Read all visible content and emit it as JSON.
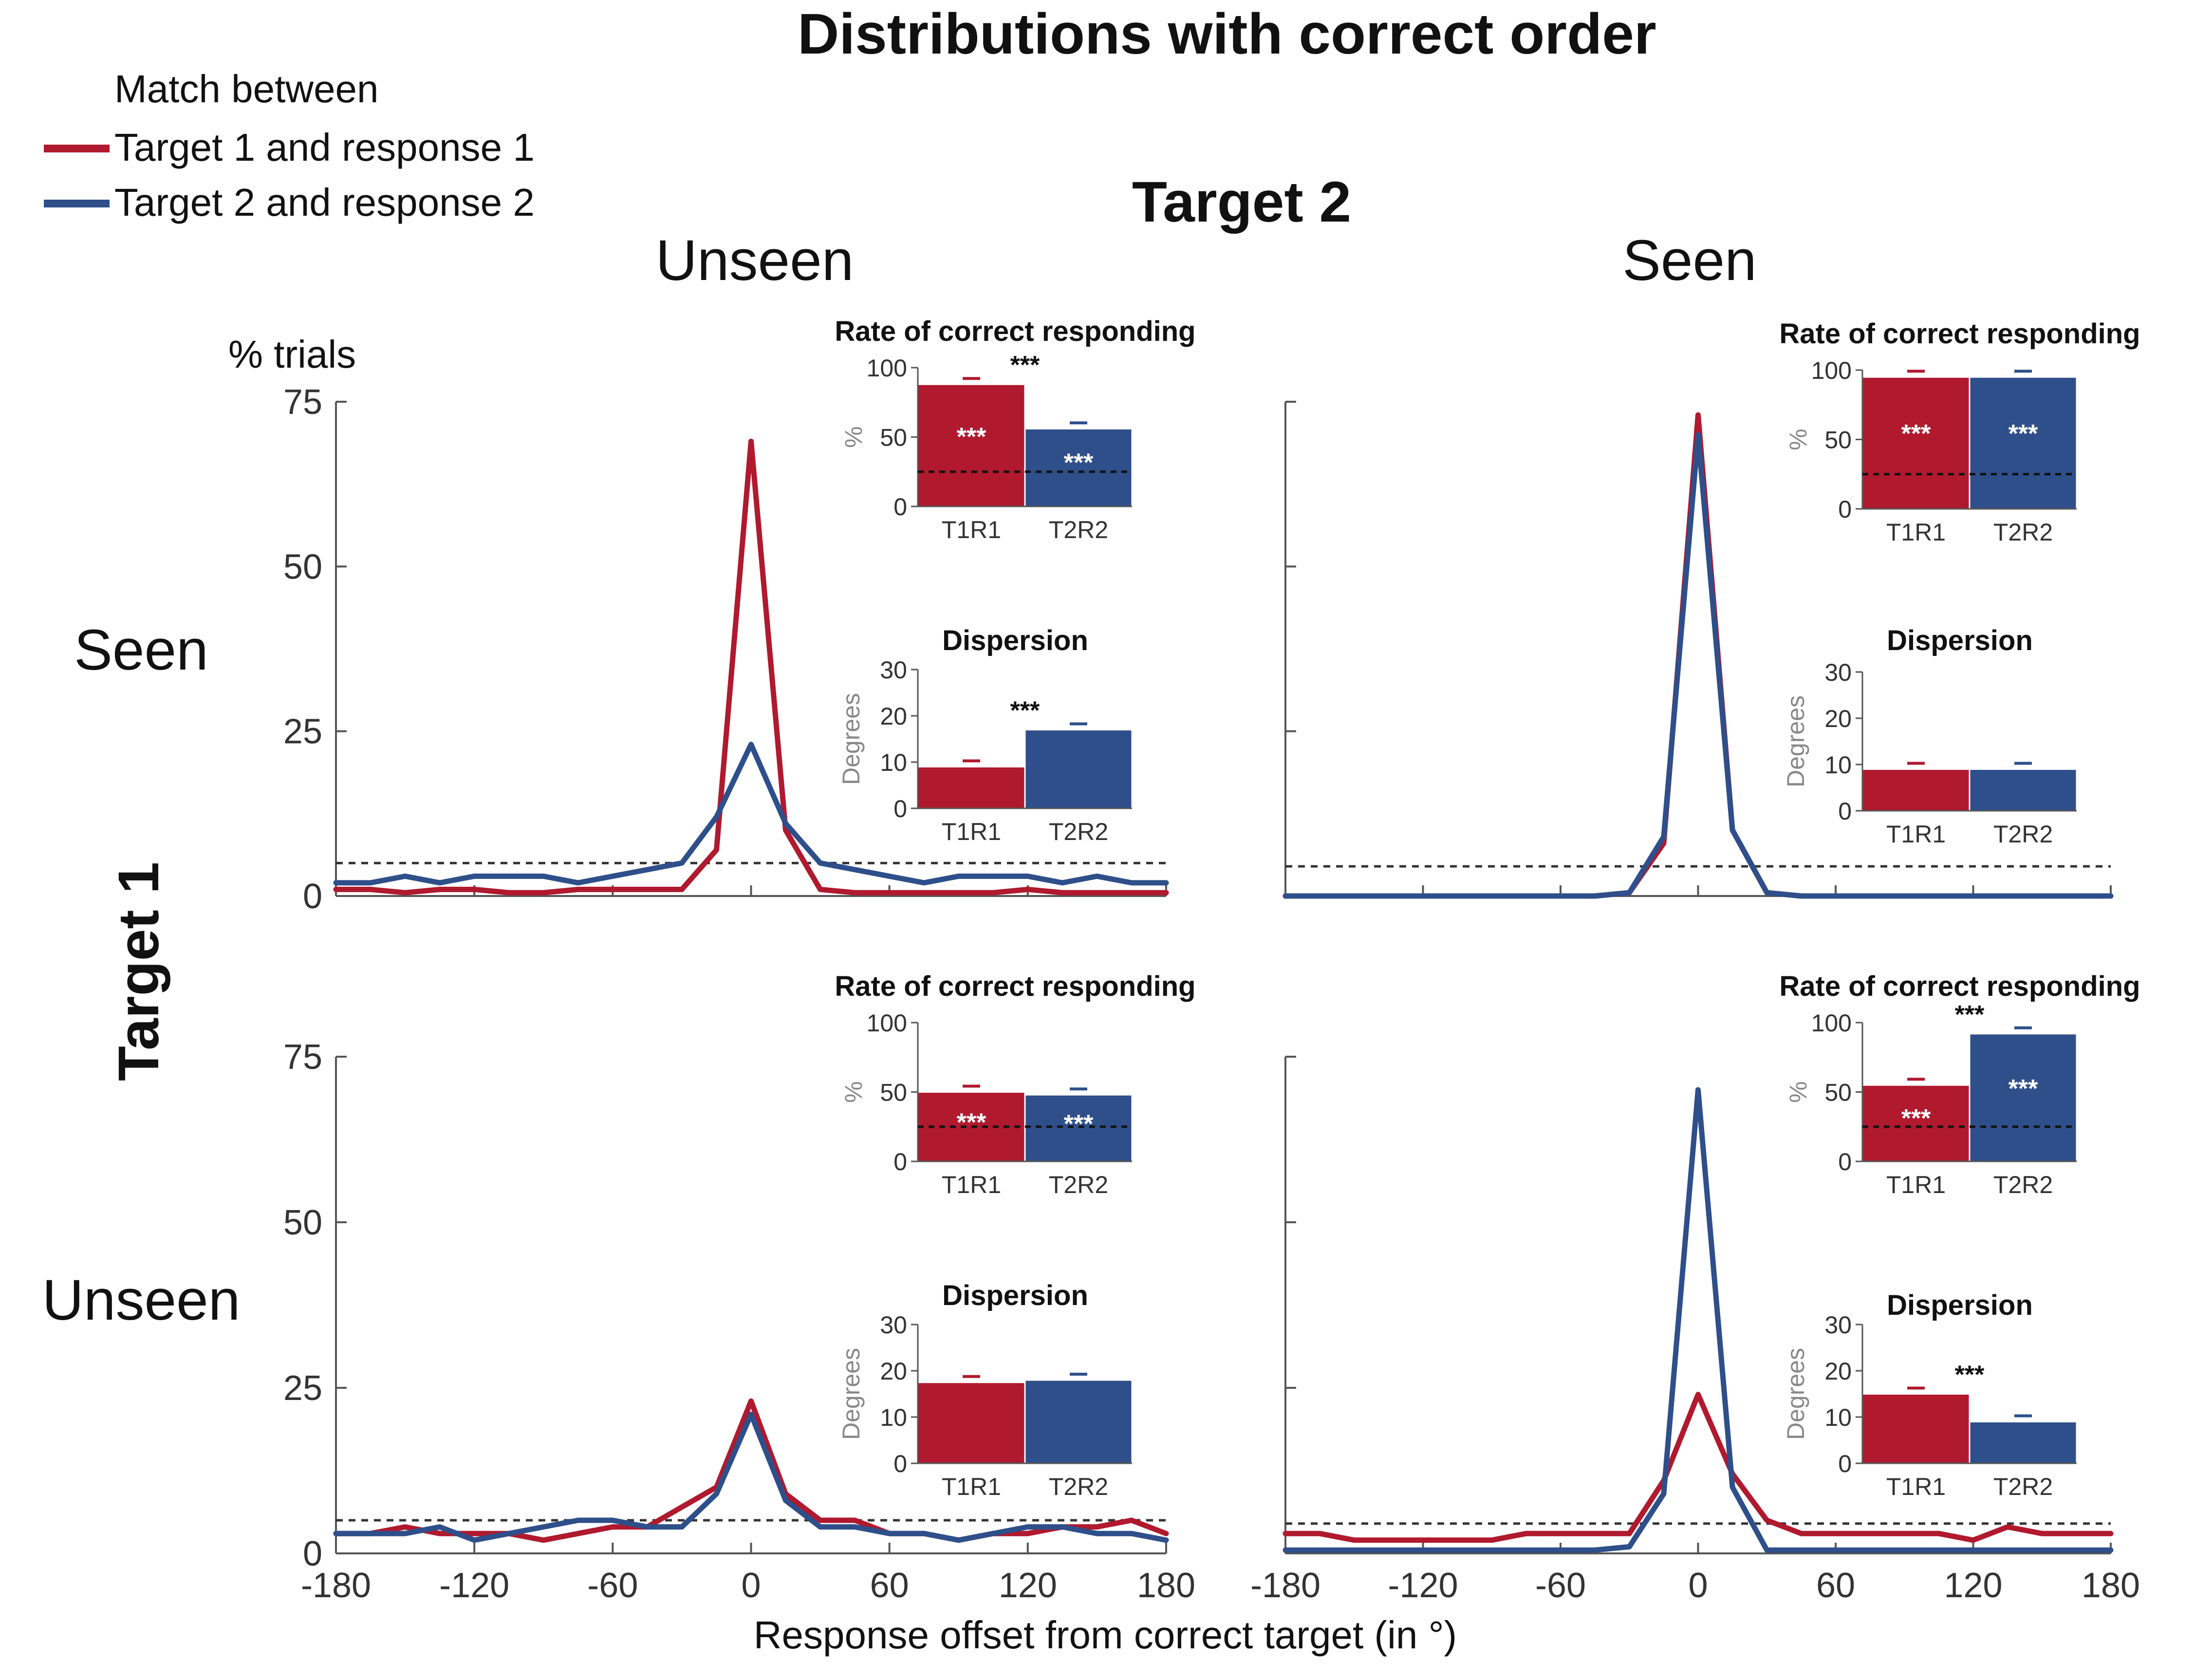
{
  "figure": {
    "title": "Distributions with correct order",
    "column_group_label": "Target 2",
    "row_group_label": "Target 1",
    "column_labels": [
      "Unseen",
      "Seen"
    ],
    "row_labels": [
      "Seen",
      "Unseen"
    ],
    "y_axis_caption": "% trials",
    "x_axis_caption": "Response offset from correct target (in °)",
    "legend": {
      "header": "Match between",
      "items": [
        {
          "label": "Target 1 and response 1",
          "color": "#b0192e"
        },
        {
          "label": "Target 2 and response 2",
          "color": "#2e4f8a"
        }
      ]
    },
    "colors": {
      "t1r1": "#b0192e",
      "t2r2": "#2e4f8a"
    }
  },
  "chart_data": [
    {
      "type": "line",
      "panel": "Target 1 Seen / Target 2 Unseen",
      "x": [
        -180,
        -165,
        -150,
        -135,
        -120,
        -105,
        -90,
        -75,
        -60,
        -45,
        -30,
        -15,
        0,
        15,
        30,
        45,
        60,
        75,
        90,
        105,
        120,
        135,
        150,
        165,
        180
      ],
      "xlim": [
        -180,
        180
      ],
      "ylim": [
        0,
        75
      ],
      "xticks": [],
      "yticks": [
        0,
        25,
        50,
        75
      ],
      "chance": 5,
      "series": [
        {
          "name": "Target 1 and response 1",
          "values": [
            1,
            1,
            0.5,
            1,
            1,
            0.5,
            0.5,
            1,
            1,
            1,
            1,
            7,
            69,
            10,
            1,
            0.5,
            0.5,
            0.5,
            0.5,
            0.5,
            1,
            0.5,
            0.5,
            0.5,
            0.5
          ]
        },
        {
          "name": "Target 2 and response 2",
          "values": [
            2,
            2,
            3,
            2,
            3,
            3,
            3,
            2,
            3,
            4,
            5,
            12,
            23,
            11,
            5,
            4,
            3,
            2,
            3,
            3,
            3,
            2,
            3,
            2,
            2
          ]
        }
      ],
      "insets": {
        "rate": {
          "title": "Rate of correct responding",
          "ylabel": "%",
          "ylim": [
            0,
            100
          ],
          "yticks": [
            0,
            50,
            100
          ],
          "categories": [
            "T1R1",
            "T2R2"
          ],
          "values": [
            88,
            56
          ],
          "chance": 25,
          "bar_stars": [
            "***",
            "***"
          ],
          "diff_star": "***"
        },
        "dispersion": {
          "title": "Dispersion",
          "ylabel": "Degrees",
          "ylim": [
            0,
            30
          ],
          "yticks": [
            0,
            10,
            20,
            30
          ],
          "categories": [
            "T1R1",
            "T2R2"
          ],
          "values": [
            9,
            17
          ],
          "diff_star": "***"
        }
      }
    },
    {
      "type": "line",
      "panel": "Target 1 Seen / Target 2 Seen",
      "x": [
        -180,
        -165,
        -150,
        -135,
        -120,
        -105,
        -90,
        -75,
        -60,
        -45,
        -30,
        -15,
        0,
        15,
        30,
        45,
        60,
        75,
        90,
        105,
        120,
        135,
        150,
        165,
        180
      ],
      "xlim": [
        -180,
        180
      ],
      "ylim": [
        0,
        75
      ],
      "xticks": [],
      "yticks": [],
      "chance": 4.5,
      "series": [
        {
          "name": "Target 1 and response 1",
          "values": [
            0,
            0,
            0,
            0,
            0,
            0,
            0,
            0,
            0,
            0,
            0.5,
            8,
            73,
            10,
            0.5,
            0,
            0,
            0,
            0,
            0,
            0,
            0,
            0,
            0,
            0
          ]
        },
        {
          "name": "Target 2 and response 2",
          "values": [
            0,
            0,
            0,
            0,
            0,
            0,
            0,
            0,
            0,
            0,
            0.5,
            9,
            70,
            10,
            0.5,
            0,
            0,
            0,
            0,
            0,
            0,
            0,
            0,
            0,
            0
          ]
        }
      ],
      "insets": {
        "rate": {
          "title": "Rate of correct responding",
          "ylabel": "%",
          "ylim": [
            0,
            100
          ],
          "yticks": [
            0,
            50,
            100
          ],
          "categories": [
            "T1R1",
            "T2R2"
          ],
          "values": [
            95,
            95
          ],
          "chance": 25,
          "bar_stars": [
            "***",
            "***"
          ],
          "diff_star": ""
        },
        "dispersion": {
          "title": "Dispersion",
          "ylabel": "Degrees",
          "ylim": [
            0,
            30
          ],
          "yticks": [
            0,
            10,
            20,
            30
          ],
          "categories": [
            "T1R1",
            "T2R2"
          ],
          "values": [
            9,
            9
          ],
          "diff_star": ""
        }
      }
    },
    {
      "type": "line",
      "panel": "Target 1 Unseen / Target 2 Unseen",
      "x": [
        -180,
        -165,
        -150,
        -135,
        -120,
        -105,
        -90,
        -75,
        -60,
        -45,
        -30,
        -15,
        0,
        15,
        30,
        45,
        60,
        75,
        90,
        105,
        120,
        135,
        150,
        165,
        180
      ],
      "xlim": [
        -180,
        180
      ],
      "ylim": [
        0,
        75
      ],
      "xticks": [
        -180,
        -120,
        -60,
        0,
        60,
        120,
        180
      ],
      "yticks": [
        0,
        25,
        50,
        75
      ],
      "chance": 5,
      "series": [
        {
          "name": "Target 1 and response 1",
          "values": [
            3,
            3,
            4,
            3,
            3,
            3,
            2,
            3,
            4,
            4,
            7,
            10,
            23,
            9,
            5,
            5,
            3,
            3,
            2,
            3,
            3,
            4,
            4,
            5,
            3
          ]
        },
        {
          "name": "Target 2 and response 2",
          "values": [
            3,
            3,
            3,
            4,
            2,
            3,
            4,
            5,
            5,
            4,
            4,
            9,
            21,
            8,
            4,
            4,
            3,
            3,
            2,
            3,
            4,
            4,
            3,
            3,
            2
          ]
        }
      ],
      "insets": {
        "rate": {
          "title": "Rate of correct responding",
          "ylabel": "%",
          "ylim": [
            0,
            100
          ],
          "yticks": [
            0,
            50,
            100
          ],
          "categories": [
            "T1R1",
            "T2R2"
          ],
          "values": [
            50,
            48
          ],
          "chance": 25,
          "bar_stars": [
            "***",
            "***"
          ],
          "diff_star": ""
        },
        "dispersion": {
          "title": "Dispersion",
          "ylabel": "Degrees",
          "ylim": [
            0,
            30
          ],
          "yticks": [
            0,
            10,
            20,
            30
          ],
          "categories": [
            "T1R1",
            "T2R2"
          ],
          "values": [
            17.5,
            18
          ],
          "diff_star": ""
        }
      }
    },
    {
      "type": "line",
      "panel": "Target 1 Unseen / Target 2 Seen",
      "x": [
        -180,
        -165,
        -150,
        -135,
        -120,
        -105,
        -90,
        -75,
        -60,
        -45,
        -30,
        -15,
        0,
        15,
        30,
        45,
        60,
        75,
        90,
        105,
        120,
        135,
        150,
        165,
        180
      ],
      "xlim": [
        -180,
        180
      ],
      "ylim": [
        0,
        75
      ],
      "xticks": [
        -180,
        -120,
        -60,
        0,
        60,
        120,
        180
      ],
      "yticks": [],
      "chance": 4.5,
      "series": [
        {
          "name": "Target 1 and response 1",
          "values": [
            3,
            3,
            2,
            2,
            2,
            2,
            2,
            3,
            3,
            3,
            3,
            11,
            24,
            12,
            5,
            3,
            3,
            3,
            3,
            3,
            2,
            4,
            3,
            3,
            3
          ]
        },
        {
          "name": "Target 2 and response 2",
          "values": [
            0.5,
            0.5,
            0.5,
            0.5,
            0.5,
            0.5,
            0.5,
            0.5,
            0.5,
            0.5,
            1,
            9,
            70,
            10,
            0.5,
            0.5,
            0.5,
            0.5,
            0.5,
            0.5,
            0.5,
            0.5,
            0.5,
            0.5,
            0.5
          ]
        }
      ],
      "insets": {
        "rate": {
          "title": "Rate of correct responding",
          "ylabel": "%",
          "ylim": [
            0,
            100
          ],
          "yticks": [
            0,
            50,
            100
          ],
          "categories": [
            "T1R1",
            "T2R2"
          ],
          "values": [
            55,
            92
          ],
          "chance": 25,
          "bar_stars": [
            "***",
            "***"
          ],
          "diff_star": "***"
        },
        "dispersion": {
          "title": "Dispersion",
          "ylabel": "Degrees",
          "ylim": [
            0,
            30
          ],
          "yticks": [
            0,
            10,
            20,
            30
          ],
          "categories": [
            "T1R1",
            "T2R2"
          ],
          "values": [
            15,
            9
          ],
          "diff_star": "***"
        }
      }
    }
  ]
}
